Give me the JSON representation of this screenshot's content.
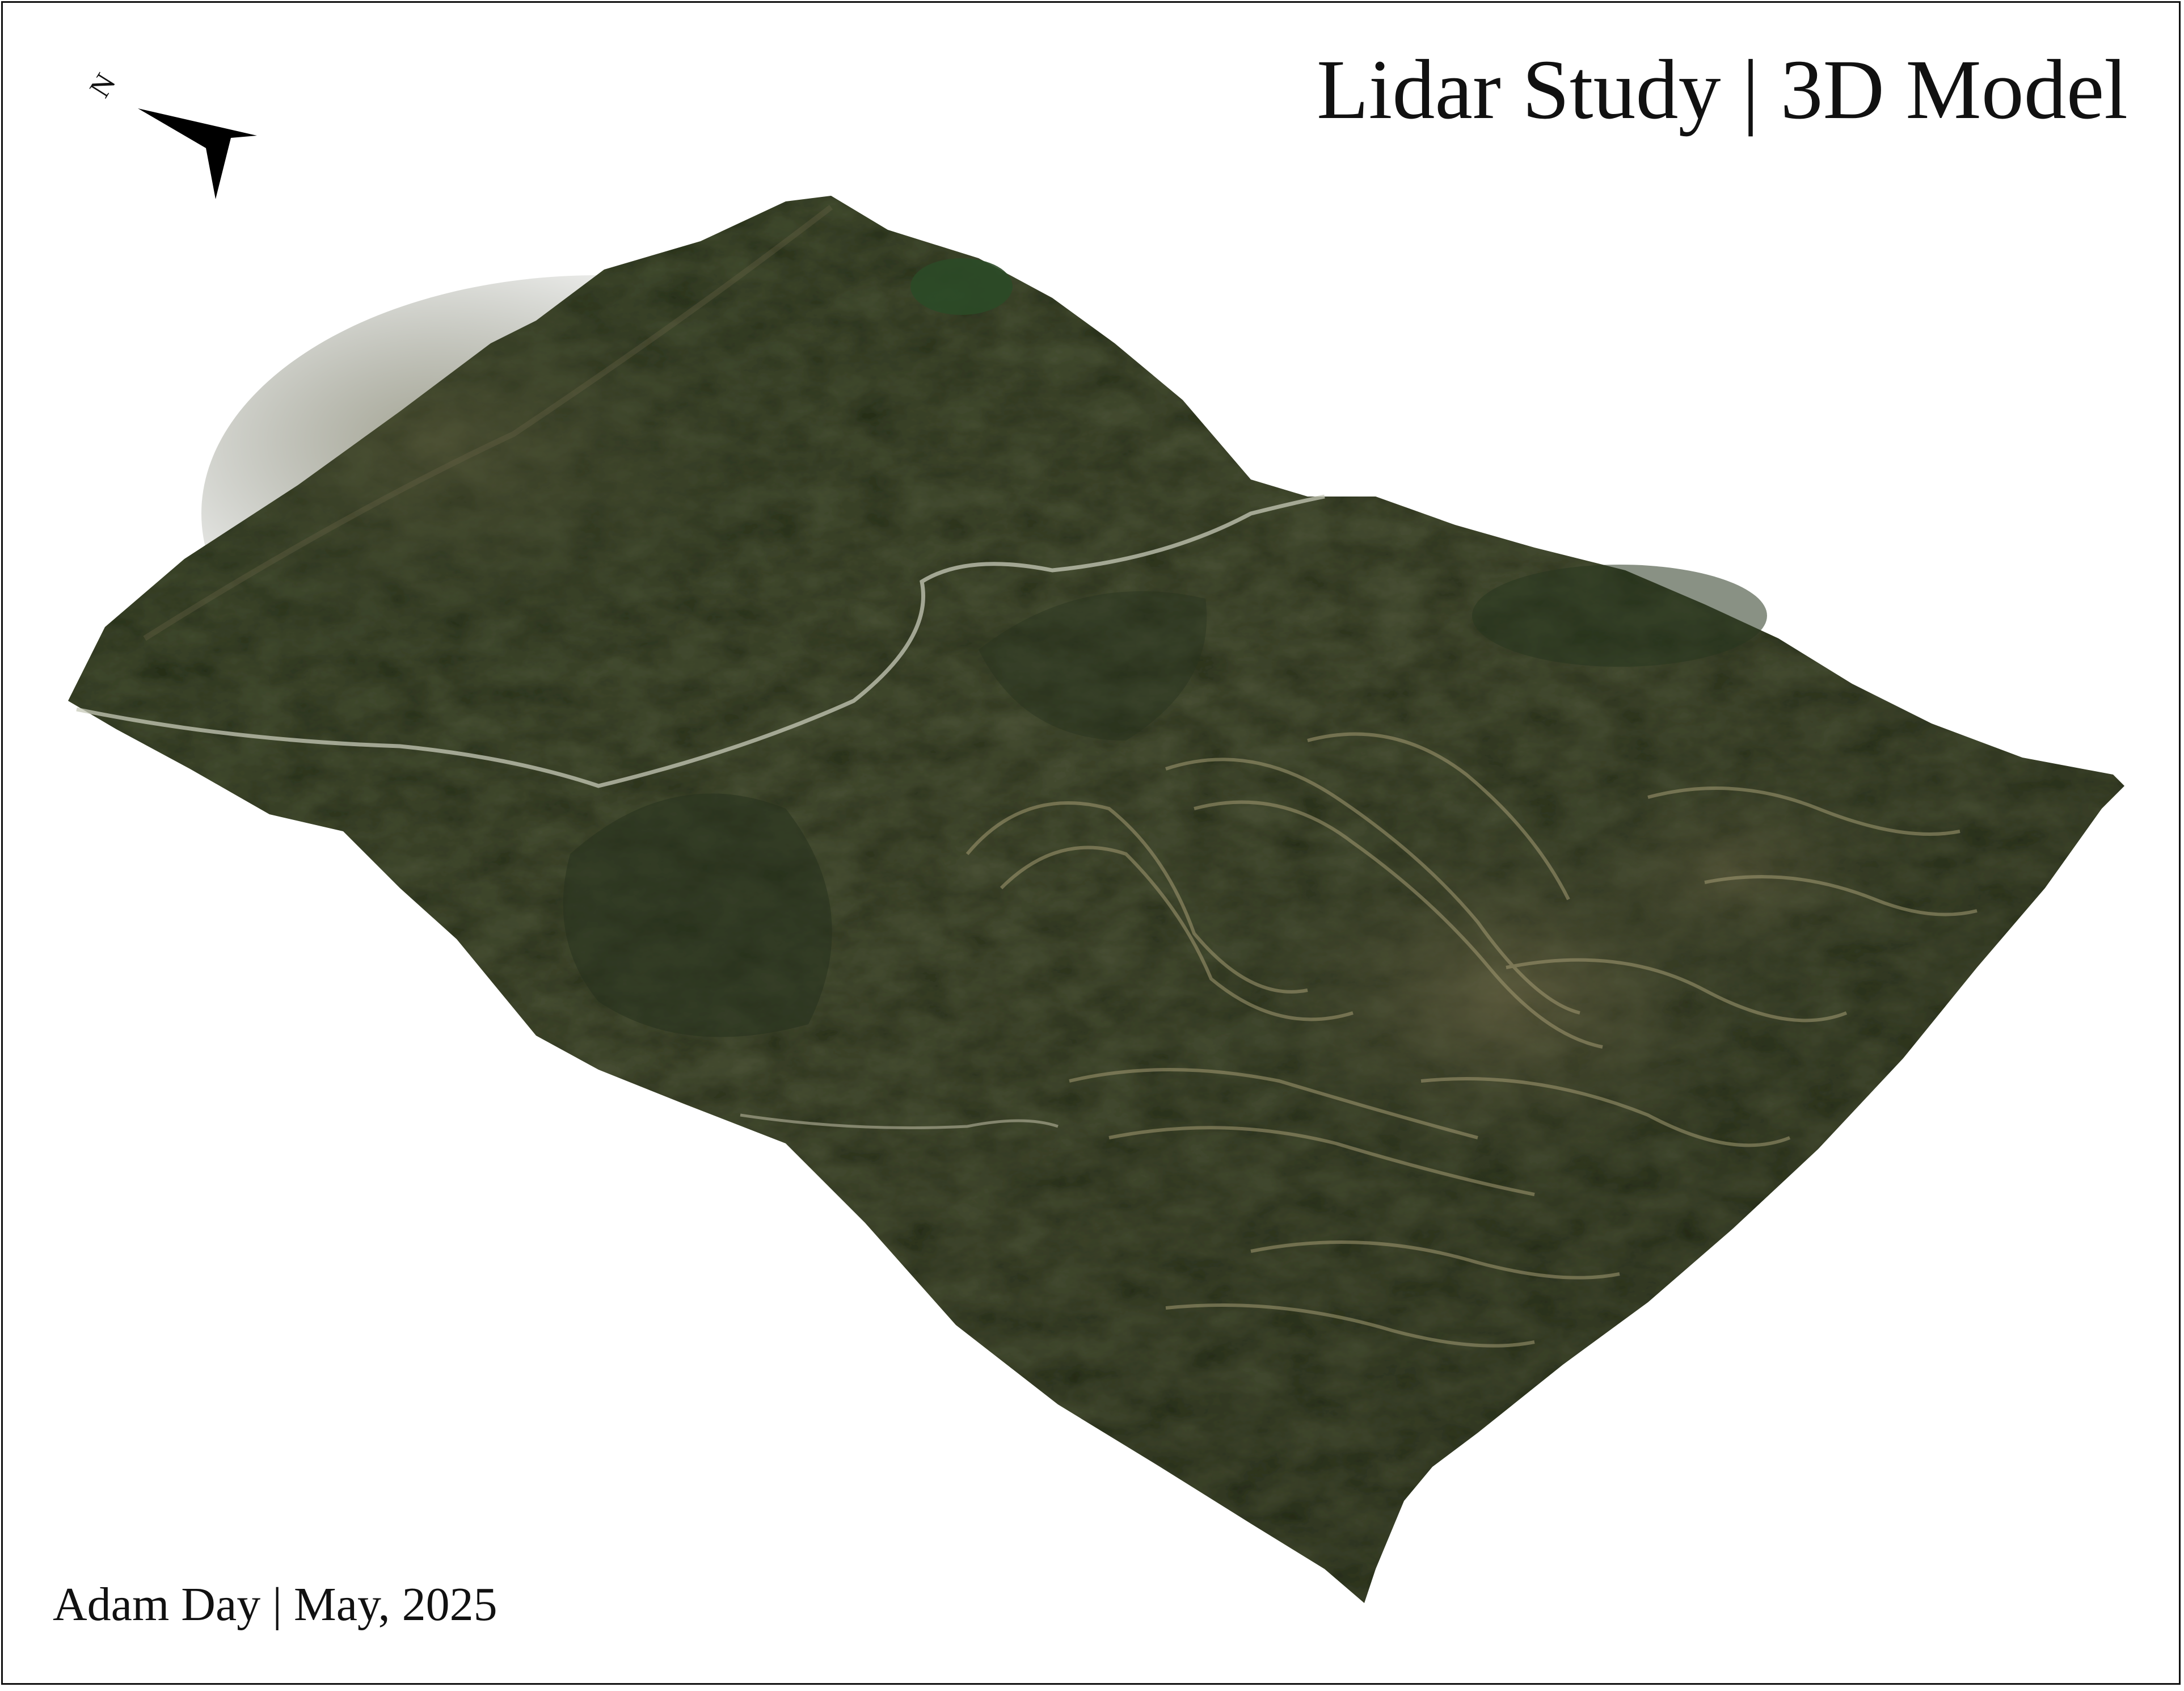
{
  "map": {
    "title": "Lidar Study | 3D Model",
    "credit": "Adam Day | May, 2025",
    "north_arrow": {
      "letter": "N",
      "icon": "north-arrow-icon"
    },
    "colors": {
      "terrain_dark": "#2c3a24",
      "terrain_mid": "#4a5236",
      "terrain_light": "#6b6448",
      "contour_tan": "#a39a72",
      "road": "#c7c9b8"
    }
  }
}
